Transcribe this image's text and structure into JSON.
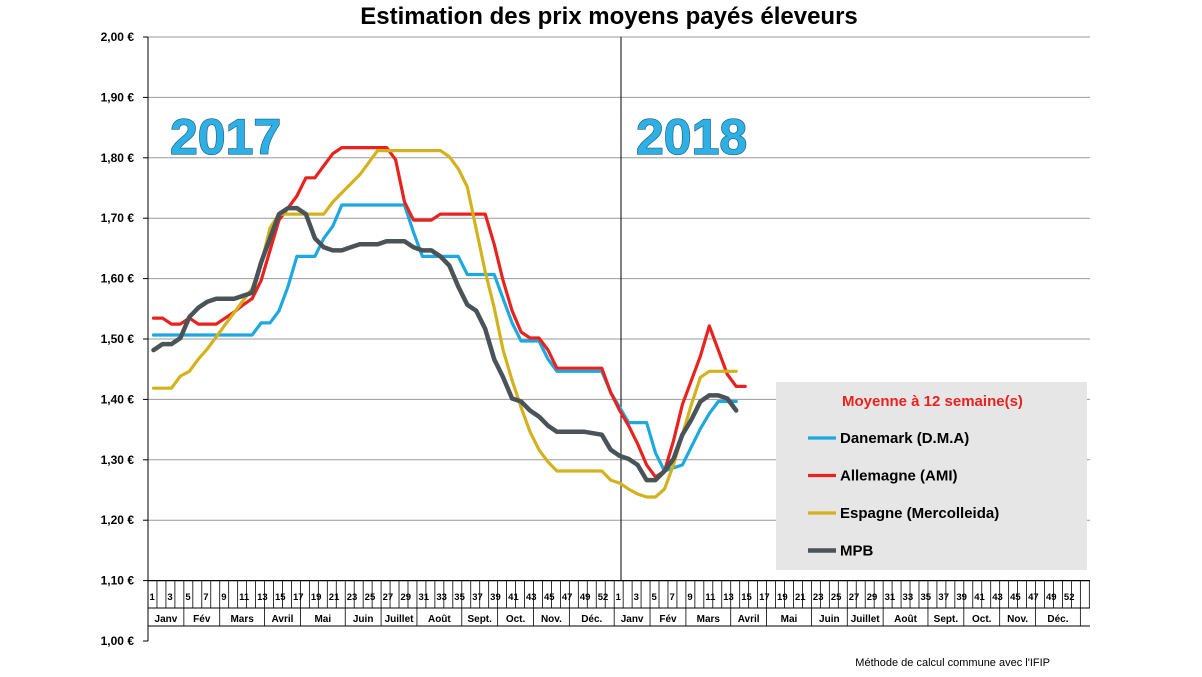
{
  "chart_data": {
    "type": "line",
    "title": "Estimation des prix moyens payés éleveurs",
    "y_ticks": [
      "2,00 €",
      "1,90 €",
      "1,80 €",
      "1,70 €",
      "1,60 €",
      "1,50 €",
      "1,40 €",
      "1,30 €",
      "1,20 €",
      "1,10 €",
      "1,00 €"
    ],
    "ylim": [
      1.0,
      2.0
    ],
    "plot_ylim": [
      1.1,
      2.0
    ],
    "grid": true,
    "year_labels": [
      "2017",
      "2018"
    ],
    "week_labels": [
      "1",
      "3",
      "5",
      "7",
      "9",
      "11",
      "13",
      "15",
      "17",
      "19",
      "21",
      "23",
      "25",
      "27",
      "29",
      "31",
      "33",
      "35",
      "37",
      "39",
      "41",
      "43",
      "45",
      "47",
      "49",
      "52",
      "1",
      "3",
      "5",
      "7",
      "9",
      "11",
      "13",
      "15",
      "17",
      "19",
      "21",
      "23",
      "25",
      "27",
      "29",
      "31",
      "33",
      "35",
      "37",
      "39",
      "41",
      "43",
      "45",
      "47",
      "49",
      "52"
    ],
    "months": [
      "Janv",
      "Fév",
      "Mars",
      "Avril",
      "Mai",
      "Juin",
      "Juillet",
      "Août",
      "Sept.",
      "Oct.",
      "Nov.",
      "Déc.",
      "Janv",
      "Fév",
      "Mars",
      "Avril",
      "Mai",
      "Juin",
      "Juillet",
      "Août",
      "Sept.",
      "Oct.",
      "Nov.",
      "Déc."
    ],
    "legend": {
      "title": "Moyenne à  12 semaine(s)",
      "placement": "lower-right"
    },
    "series": [
      {
        "name": "Danemark (D.M.A)",
        "color": "#1ea8e0",
        "points": [
          [
            1,
            1.507
          ],
          [
            12,
            1.507
          ],
          [
            13,
            1.527
          ],
          [
            14,
            1.527
          ],
          [
            15,
            1.547
          ],
          [
            16,
            1.587
          ],
          [
            17,
            1.637
          ],
          [
            19,
            1.637
          ],
          [
            20,
            1.667
          ],
          [
            21,
            1.687
          ],
          [
            22,
            1.722
          ],
          [
            29,
            1.722
          ],
          [
            30,
            1.677
          ],
          [
            31,
            1.637
          ],
          [
            33,
            1.637
          ],
          [
            34,
            1.637
          ],
          [
            35,
            1.637
          ],
          [
            36,
            1.607
          ],
          [
            39,
            1.607
          ],
          [
            40,
            1.567
          ],
          [
            41,
            1.527
          ],
          [
            42,
            1.497
          ],
          [
            44,
            1.497
          ],
          [
            45,
            1.467
          ],
          [
            46,
            1.447
          ],
          [
            51,
            1.447
          ],
          [
            52,
            1.412
          ],
          [
            53,
            1.387
          ],
          [
            54,
            1.362
          ],
          [
            56,
            1.362
          ],
          [
            57,
            1.312
          ],
          [
            58,
            1.282
          ],
          [
            60,
            1.292
          ],
          [
            61,
            1.322
          ],
          [
            62,
            1.352
          ],
          [
            63,
            1.377
          ],
          [
            64,
            1.397
          ],
          [
            66,
            1.397
          ]
        ]
      },
      {
        "name": "Allemagne (AMI)",
        "color": "#e8231f",
        "points": [
          [
            1,
            1.535
          ],
          [
            2,
            1.535
          ],
          [
            3,
            1.525
          ],
          [
            4,
            1.525
          ],
          [
            5,
            1.535
          ],
          [
            6,
            1.525
          ],
          [
            8,
            1.525
          ],
          [
            9,
            1.535
          ],
          [
            10,
            1.545
          ],
          [
            11,
            1.557
          ],
          [
            12,
            1.567
          ],
          [
            13,
            1.597
          ],
          [
            14,
            1.647
          ],
          [
            15,
            1.697
          ],
          [
            16,
            1.717
          ],
          [
            17,
            1.737
          ],
          [
            18,
            1.767
          ],
          [
            19,
            1.767
          ],
          [
            20,
            1.787
          ],
          [
            21,
            1.807
          ],
          [
            22,
            1.817
          ],
          [
            27,
            1.817
          ],
          [
            28,
            1.797
          ],
          [
            29,
            1.727
          ],
          [
            30,
            1.697
          ],
          [
            32,
            1.697
          ],
          [
            33,
            1.707
          ],
          [
            38,
            1.707
          ],
          [
            39,
            1.657
          ],
          [
            40,
            1.597
          ],
          [
            41,
            1.547
          ],
          [
            42,
            1.512
          ],
          [
            43,
            1.502
          ],
          [
            44,
            1.502
          ],
          [
            45,
            1.482
          ],
          [
            46,
            1.452
          ],
          [
            51,
            1.452
          ],
          [
            52,
            1.412
          ],
          [
            53,
            1.382
          ],
          [
            54,
            1.357
          ],
          [
            55,
            1.327
          ],
          [
            56,
            1.292
          ],
          [
            57,
            1.272
          ],
          [
            58,
            1.282
          ],
          [
            59,
            1.332
          ],
          [
            60,
            1.392
          ],
          [
            61,
            1.432
          ],
          [
            62,
            1.472
          ],
          [
            63,
            1.522
          ],
          [
            64,
            1.482
          ],
          [
            65,
            1.442
          ],
          [
            66,
            1.422
          ],
          [
            67,
            1.422
          ]
        ]
      },
      {
        "name": "Espagne (Mercolleida)",
        "color": "#d4b21e",
        "points": [
          [
            1,
            1.419
          ],
          [
            3,
            1.419
          ],
          [
            4,
            1.439
          ],
          [
            5,
            1.447
          ],
          [
            6,
            1.467
          ],
          [
            7,
            1.484
          ],
          [
            8,
            1.504
          ],
          [
            9,
            1.524
          ],
          [
            10,
            1.544
          ],
          [
            11,
            1.564
          ],
          [
            12,
            1.584
          ],
          [
            13,
            1.624
          ],
          [
            14,
            1.684
          ],
          [
            15,
            1.707
          ],
          [
            20,
            1.707
          ],
          [
            21,
            1.727
          ],
          [
            22,
            1.742
          ],
          [
            23,
            1.757
          ],
          [
            24,
            1.772
          ],
          [
            25,
            1.792
          ],
          [
            26,
            1.812
          ],
          [
            33,
            1.812
          ],
          [
            34,
            1.802
          ],
          [
            35,
            1.782
          ],
          [
            36,
            1.752
          ],
          [
            37,
            1.682
          ],
          [
            38,
            1.612
          ],
          [
            39,
            1.552
          ],
          [
            40,
            1.482
          ],
          [
            41,
            1.432
          ],
          [
            42,
            1.387
          ],
          [
            43,
            1.347
          ],
          [
            44,
            1.317
          ],
          [
            45,
            1.297
          ],
          [
            46,
            1.282
          ],
          [
            51,
            1.282
          ],
          [
            52,
            1.267
          ],
          [
            53,
            1.262
          ],
          [
            54,
            1.252
          ],
          [
            55,
            1.244
          ],
          [
            56,
            1.239
          ],
          [
            57,
            1.239
          ],
          [
            58,
            1.252
          ],
          [
            59,
            1.292
          ],
          [
            60,
            1.342
          ],
          [
            61,
            1.392
          ],
          [
            62,
            1.437
          ],
          [
            63,
            1.447
          ],
          [
            64,
            1.447
          ],
          [
            66,
            1.447
          ]
        ]
      },
      {
        "name": "MPB",
        "color": "#4a5357",
        "points": [
          [
            1,
            1.482
          ],
          [
            2,
            1.492
          ],
          [
            3,
            1.492
          ],
          [
            4,
            1.502
          ],
          [
            5,
            1.537
          ],
          [
            6,
            1.552
          ],
          [
            7,
            1.562
          ],
          [
            8,
            1.567
          ],
          [
            9,
            1.567
          ],
          [
            10,
            1.567
          ],
          [
            11,
            1.572
          ],
          [
            12,
            1.577
          ],
          [
            13,
            1.627
          ],
          [
            14,
            1.667
          ],
          [
            15,
            1.707
          ],
          [
            16,
            1.717
          ],
          [
            17,
            1.717
          ],
          [
            18,
            1.707
          ],
          [
            19,
            1.667
          ],
          [
            20,
            1.652
          ],
          [
            21,
            1.647
          ],
          [
            22,
            1.647
          ],
          [
            23,
            1.652
          ],
          [
            24,
            1.657
          ],
          [
            25,
            1.657
          ],
          [
            26,
            1.657
          ],
          [
            27,
            1.662
          ],
          [
            29,
            1.662
          ],
          [
            30,
            1.652
          ],
          [
            31,
            1.647
          ],
          [
            32,
            1.647
          ],
          [
            33,
            1.637
          ],
          [
            34,
            1.622
          ],
          [
            35,
            1.587
          ],
          [
            36,
            1.557
          ],
          [
            37,
            1.547
          ],
          [
            38,
            1.517
          ],
          [
            39,
            1.467
          ],
          [
            40,
            1.437
          ],
          [
            41,
            1.402
          ],
          [
            42,
            1.397
          ],
          [
            43,
            1.382
          ],
          [
            44,
            1.372
          ],
          [
            45,
            1.357
          ],
          [
            46,
            1.347
          ],
          [
            49,
            1.347
          ],
          [
            51,
            1.342
          ],
          [
            52,
            1.317
          ],
          [
            53,
            1.307
          ],
          [
            54,
            1.302
          ],
          [
            55,
            1.292
          ],
          [
            56,
            1.267
          ],
          [
            57,
            1.267
          ],
          [
            58,
            1.282
          ],
          [
            59,
            1.302
          ],
          [
            60,
            1.342
          ],
          [
            61,
            1.367
          ],
          [
            62,
            1.397
          ],
          [
            63,
            1.407
          ],
          [
            64,
            1.407
          ],
          [
            65,
            1.402
          ],
          [
            66,
            1.382
          ]
        ]
      }
    ]
  },
  "footnote": "Méthode de calcul commune avec l'IFIP"
}
